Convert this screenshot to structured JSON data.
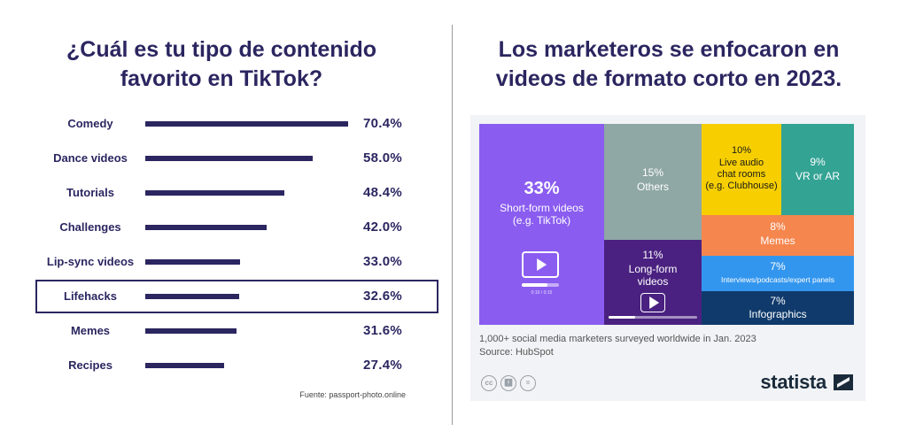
{
  "left": {
    "title": "¿Cuál es tu tipo de contenido favorito en TikTok?",
    "source": "Fuente: passport-photo.online",
    "highlighted": "Lifehacks"
  },
  "right": {
    "title": "Los marketeros se enfocaron en videos de formato corto en 2023.",
    "note_line1": "1,000+ social media marketers surveyed worldwide in Jan. 2023",
    "note_line2": "Source: HubSpot",
    "brand": "statista",
    "icons": [
      "cc-icon",
      "person-icon",
      "equals-icon"
    ],
    "video_timecode": "0:10 / 0:15"
  },
  "colors": {
    "navy": "#2b2660",
    "short_form": "#8a5cf0",
    "others": "#8fa7a5",
    "long_form": "#4a2180",
    "live_audio": "#f7cf00",
    "vr_ar": "#33a394",
    "memes": "#f5864e",
    "interviews": "#3396ee",
    "infographics": "#0f3a6b"
  },
  "chart_data": [
    {
      "type": "bar",
      "title": "¿Cuál es tu tipo de contenido favorito en TikTok?",
      "categories": [
        "Comedy",
        "Dance videos",
        "Tutorials",
        "Challenges",
        "Lip-sync videos",
        "Lifehacks",
        "Memes",
        "Recipes"
      ],
      "values": [
        70.4,
        58.0,
        48.4,
        42.0,
        33.0,
        32.6,
        31.6,
        27.4
      ],
      "value_labels": [
        "70.4%",
        "58.0%",
        "48.4%",
        "42.0%",
        "33.0%",
        "32.6%",
        "31.6%",
        "27.4%"
      ],
      "xlim": [
        0,
        70.4
      ],
      "orientation": "horizontal"
    },
    {
      "type": "heatmap",
      "title": "Los marketeros se enfocaron en videos de formato corto en 2023.",
      "segments": [
        {
          "key": "short_form",
          "value": 33,
          "pct": "33%",
          "lines": [
            "Short-form videos",
            "(e.g. TikTok)"
          ]
        },
        {
          "key": "others",
          "value": 15,
          "pct": "15%",
          "lines": [
            "Others"
          ]
        },
        {
          "key": "long_form",
          "value": 11,
          "pct": "11%",
          "lines": [
            "Long-form",
            "videos"
          ]
        },
        {
          "key": "live_audio",
          "value": 10,
          "pct": "10%",
          "lines": [
            "Live audio",
            "chat rooms",
            "(e.g. Clubhouse)"
          ]
        },
        {
          "key": "vr_ar",
          "value": 9,
          "pct": "9%",
          "lines": [
            "VR or AR"
          ]
        },
        {
          "key": "memes",
          "value": 8,
          "pct": "8%",
          "lines": [
            "Memes"
          ]
        },
        {
          "key": "interviews",
          "value": 7,
          "pct": "7%",
          "lines": [
            "Interviews/podcasts/expert panels"
          ]
        },
        {
          "key": "infographics",
          "value": 7,
          "pct": "7%",
          "lines": [
            "Infographics"
          ]
        }
      ]
    }
  ]
}
